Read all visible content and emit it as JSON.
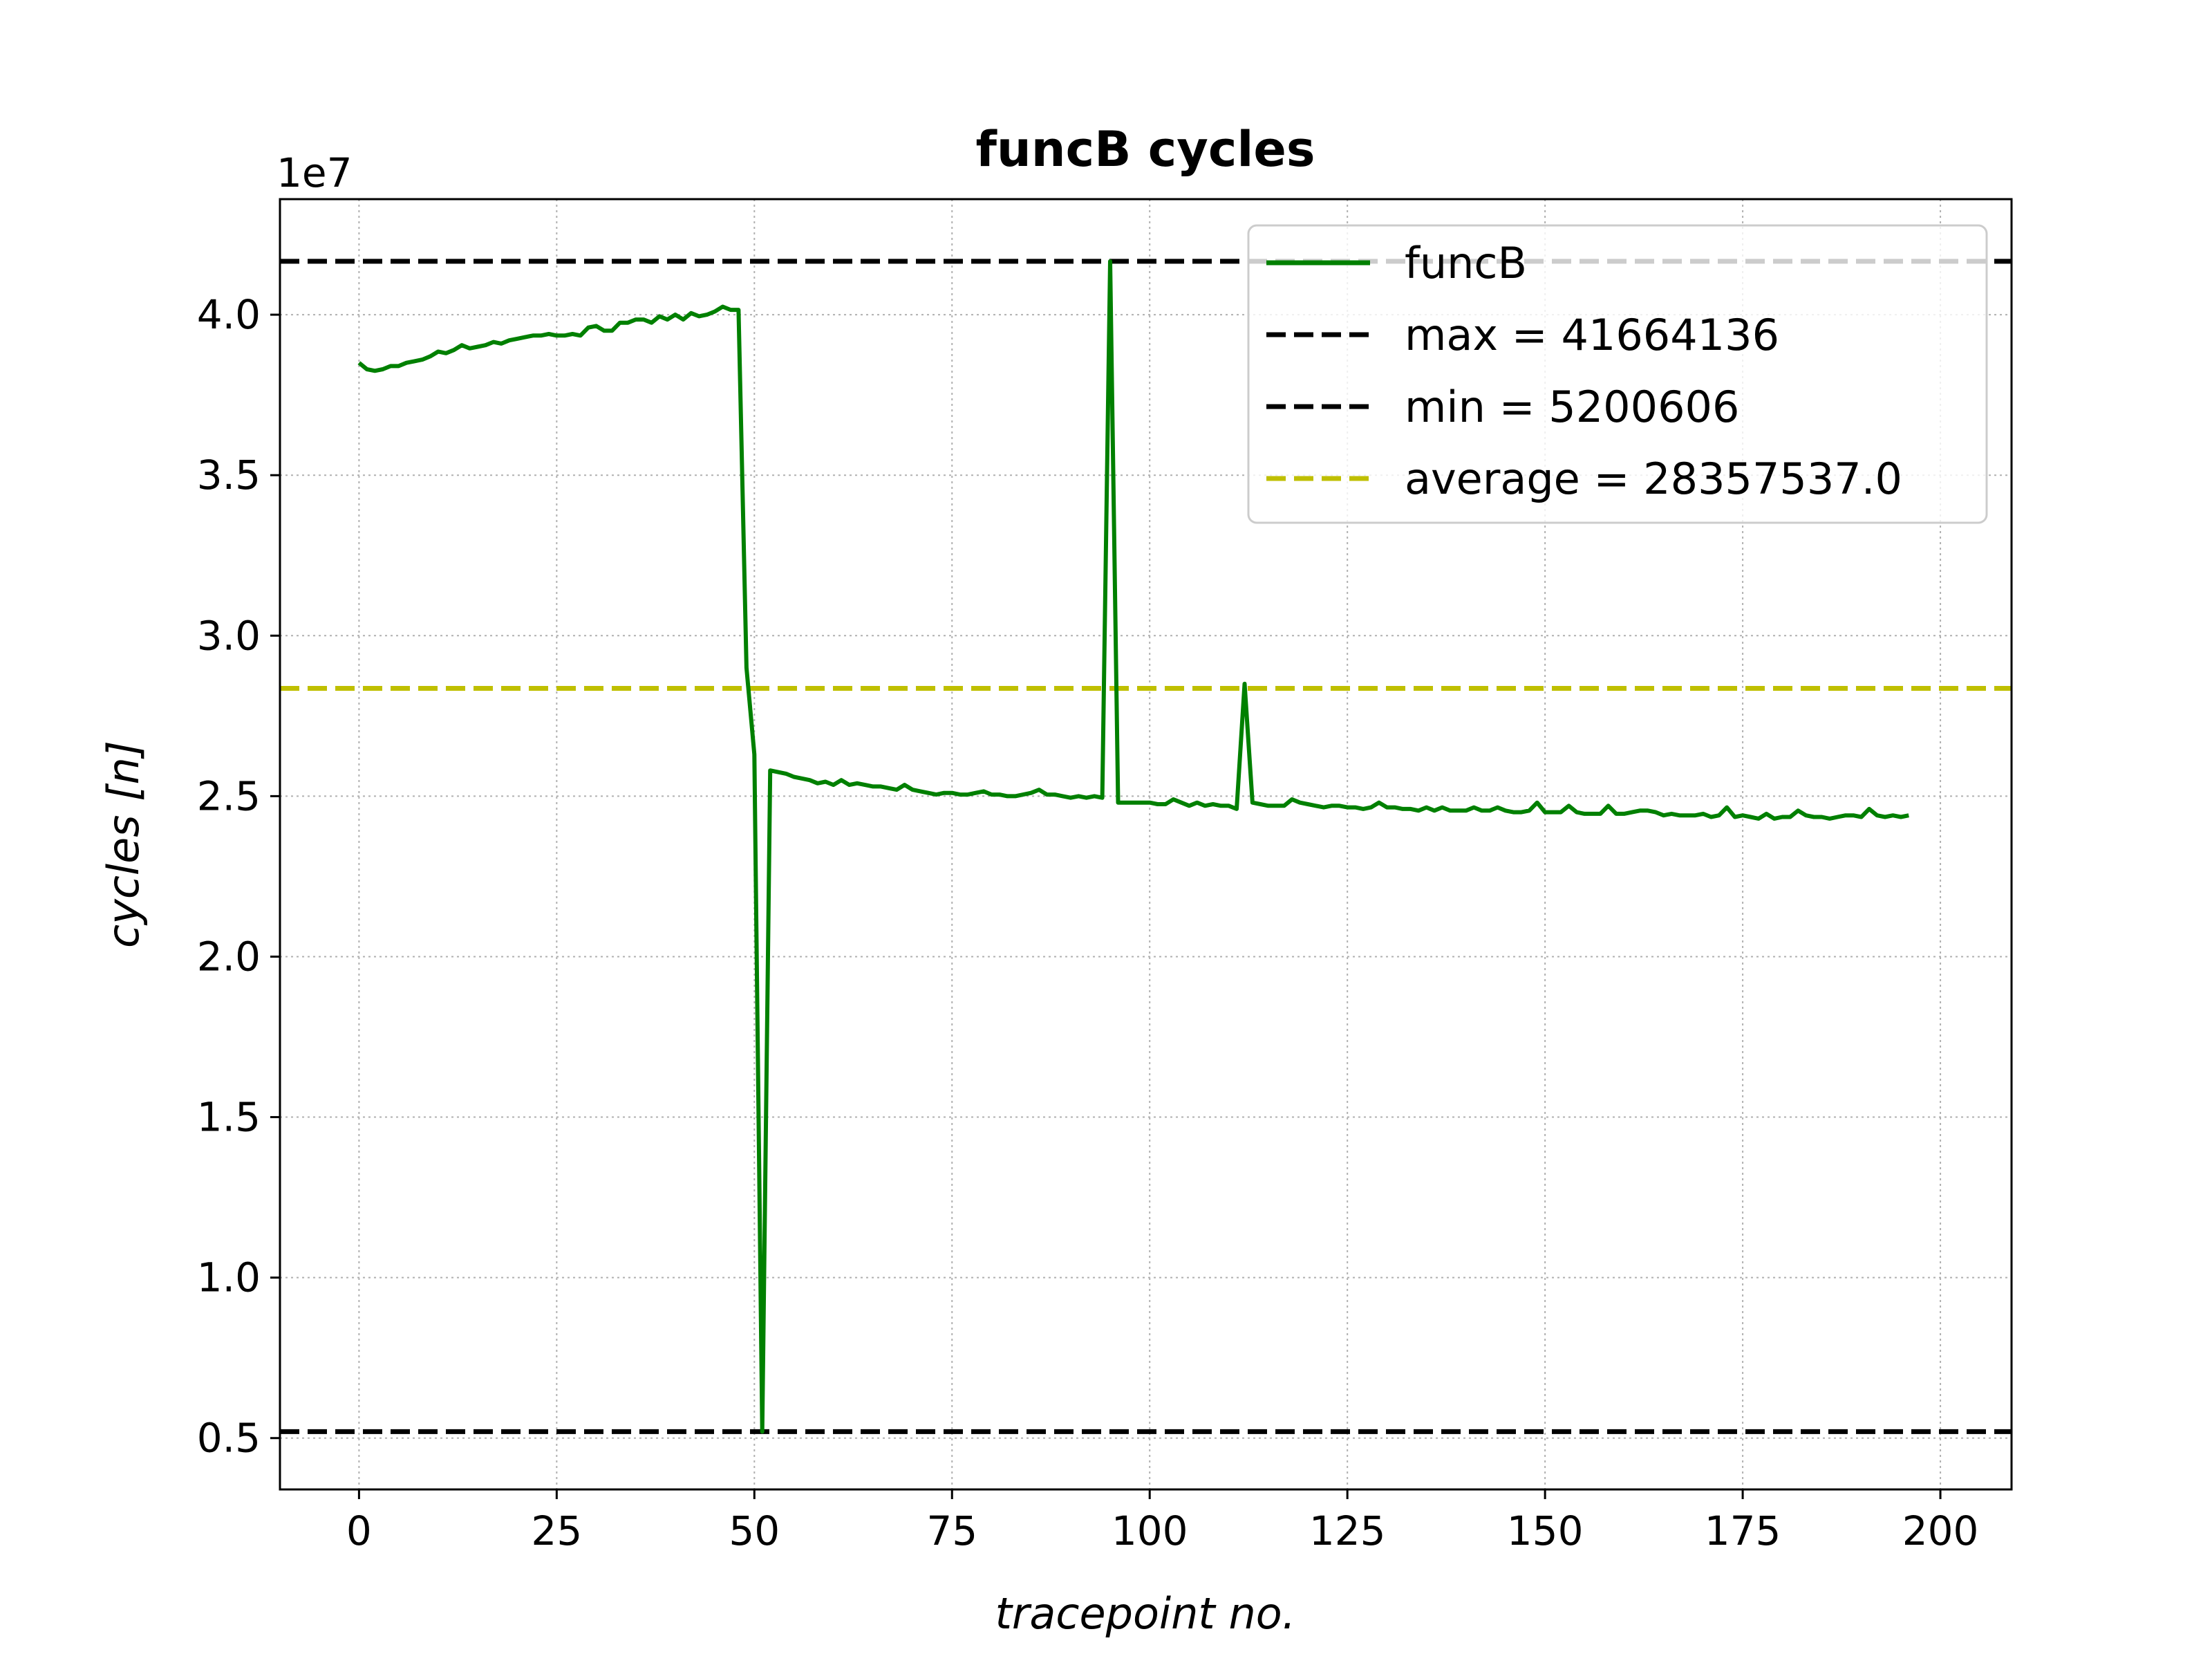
{
  "chart_data": {
    "type": "line",
    "title": "funcB cycles",
    "xlabel": "tracepoint no.",
    "ylabel": "cycles [n]",
    "y_offset_label": "1e7",
    "y_scale": 10000000,
    "xlim": [
      -10,
      209
    ],
    "ylim": [
      3400000,
      43600000
    ],
    "x_ticks": [
      0,
      25,
      50,
      75,
      100,
      125,
      150,
      175,
      200
    ],
    "x_tick_labels": [
      "0",
      "25",
      "50",
      "75",
      "100",
      "125",
      "150",
      "175",
      "200"
    ],
    "y_ticks": [
      5000000,
      10000000,
      15000000,
      20000000,
      25000000,
      30000000,
      35000000,
      40000000
    ],
    "y_tick_labels": [
      "0.5",
      "1.0",
      "1.5",
      "2.0",
      "2.5",
      "3.0",
      "3.5",
      "4.0"
    ],
    "grid": true,
    "legend_position": "top-right",
    "colors": {
      "series": "#008000",
      "max_min": "#000000",
      "average": "#bfbf00",
      "grid": "#b0b0b0"
    },
    "series": [
      {
        "name": "funcB",
        "x_start": 0,
        "values": [
          38500000,
          38300000,
          38250000,
          38300000,
          38400000,
          38400000,
          38500000,
          38550000,
          38600000,
          38700000,
          38850000,
          38800000,
          38900000,
          39050000,
          38950000,
          39000000,
          39050000,
          39150000,
          39100000,
          39200000,
          39250000,
          39300000,
          39350000,
          39350000,
          39400000,
          39350000,
          39350000,
          39400000,
          39350000,
          39600000,
          39650000,
          39500000,
          39500000,
          39750000,
          39750000,
          39850000,
          39850000,
          39750000,
          39950000,
          39850000,
          40000000,
          39850000,
          40050000,
          39950000,
          40000000,
          40100000,
          40250000,
          40150000,
          40150000,
          29000000,
          26300000,
          5200606,
          25800000,
          25750000,
          25700000,
          25600000,
          25550000,
          25500000,
          25400000,
          25450000,
          25350000,
          25500000,
          25350000,
          25400000,
          25350000,
          25300000,
          25300000,
          25250000,
          25200000,
          25350000,
          25200000,
          25150000,
          25100000,
          25050000,
          25100000,
          25100000,
          25050000,
          25050000,
          25100000,
          25150000,
          25050000,
          25050000,
          25000000,
          25000000,
          25050000,
          25100000,
          25200000,
          25050000,
          25050000,
          25000000,
          24950000,
          25000000,
          24950000,
          25000000,
          24950000,
          41664136,
          24800000,
          24800000,
          24800000,
          24800000,
          24800000,
          24750000,
          24750000,
          24900000,
          24800000,
          24700000,
          24800000,
          24700000,
          24750000,
          24700000,
          24700000,
          24600000,
          28500000,
          24800000,
          24750000,
          24700000,
          24700000,
          24700000,
          24900000,
          24800000,
          24750000,
          24700000,
          24650000,
          24700000,
          24700000,
          24650000,
          24650000,
          24600000,
          24650000,
          24800000,
          24650000,
          24650000,
          24600000,
          24600000,
          24550000,
          24650000,
          24550000,
          24650000,
          24550000,
          24550000,
          24550000,
          24650000,
          24550000,
          24550000,
          24650000,
          24550000,
          24500000,
          24500000,
          24550000,
          24800000,
          24500000,
          24500000,
          24500000,
          24700000,
          24500000,
          24450000,
          24450000,
          24450000,
          24700000,
          24450000,
          24450000,
          24500000,
          24550000,
          24550000,
          24500000,
          24400000,
          24450000,
          24400000,
          24400000,
          24400000,
          24450000,
          24350000,
          24400000,
          24650000,
          24350000,
          24400000,
          24350000,
          24300000,
          24450000,
          24300000,
          24350000,
          24350000,
          24550000,
          24400000,
          24350000,
          24350000,
          24300000,
          24350000,
          24400000,
          24400000,
          24350000,
          24600000,
          24400000,
          24350000,
          24400000,
          24350000,
          24400000
        ]
      }
    ],
    "reference_lines": [
      {
        "label": "max = 41664136",
        "value": 41664136,
        "style": "dashed",
        "color": "#000000"
      },
      {
        "label": "min = 5200606",
        "value": 5200606,
        "style": "dashed",
        "color": "#000000"
      },
      {
        "label": "average = 28357537.0",
        "value": 28357537.0,
        "style": "dashed",
        "color": "#bfbf00"
      }
    ]
  }
}
